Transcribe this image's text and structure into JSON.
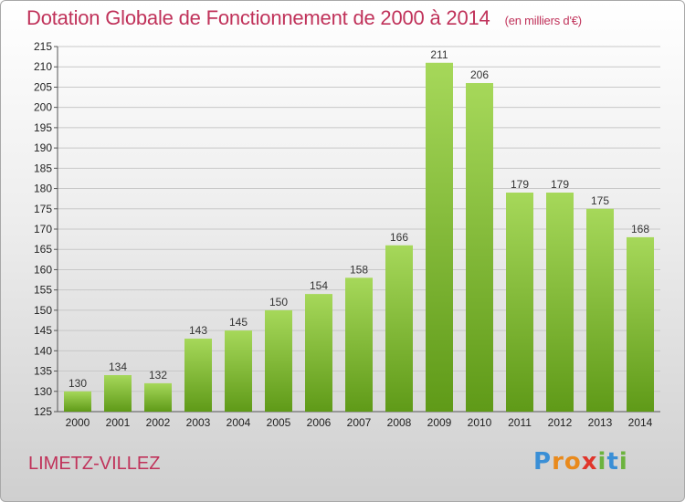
{
  "header": {
    "title": "Dotation Globale de Fonctionnement de 2000 à 2014",
    "unit": "(en milliers d'€)"
  },
  "footer": {
    "commune": "LIMETZ-VILLEZ",
    "logo": "Proxiti"
  },
  "colors": {
    "title": "#c0325a",
    "bar_top": "#a6d85a",
    "bar_bottom": "#5f9a18",
    "grid": "#c8c8c8"
  },
  "chart_data": {
    "type": "bar",
    "categories": [
      "2000",
      "2001",
      "2002",
      "2003",
      "2004",
      "2005",
      "2006",
      "2007",
      "2008",
      "2009",
      "2010",
      "2011",
      "2012",
      "2013",
      "2014"
    ],
    "values": [
      130,
      134,
      132,
      143,
      145,
      150,
      154,
      158,
      166,
      211,
      206,
      179,
      179,
      175,
      168
    ],
    "ylim": [
      125,
      215
    ],
    "yticks": [
      125,
      130,
      135,
      140,
      145,
      150,
      155,
      160,
      165,
      170,
      175,
      180,
      185,
      190,
      195,
      200,
      205,
      210,
      215
    ],
    "grid": true,
    "legend": "none"
  }
}
